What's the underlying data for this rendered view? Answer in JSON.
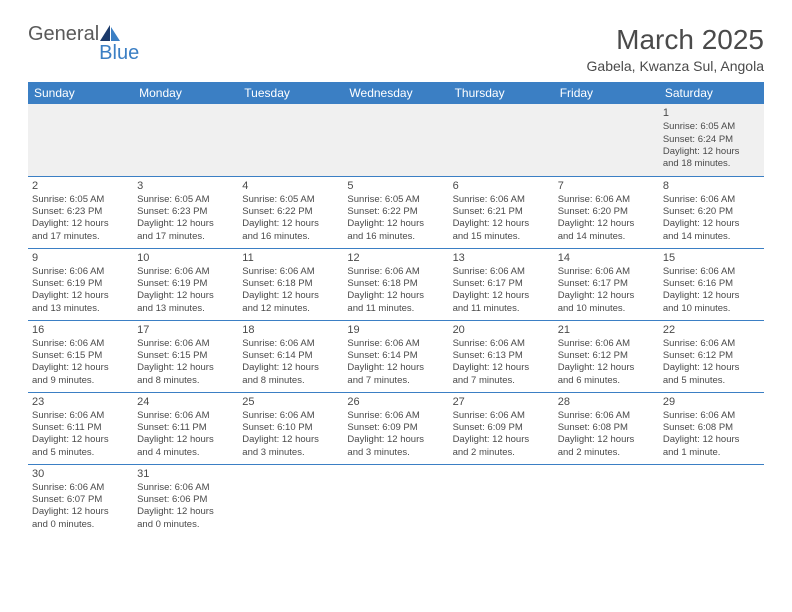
{
  "logo": {
    "general": "General",
    "blue": "Blue"
  },
  "title": "March 2025",
  "location": "Gabela, Kwanza Sul, Angola",
  "colors": {
    "header_bg": "#3b7fc4",
    "header_text": "#ffffff",
    "text": "#4a4a4a",
    "border": "#3b7fc4",
    "first_row_bg": "#f0f0f0",
    "page_bg": "#ffffff"
  },
  "dayNames": [
    "Sunday",
    "Monday",
    "Tuesday",
    "Wednesday",
    "Thursday",
    "Friday",
    "Saturday"
  ],
  "weeks": [
    [
      null,
      null,
      null,
      null,
      null,
      null,
      {
        "n": "1",
        "sr": "Sunrise: 6:05 AM",
        "ss": "Sunset: 6:24 PM",
        "dl1": "Daylight: 12 hours",
        "dl2": "and 18 minutes."
      }
    ],
    [
      {
        "n": "2",
        "sr": "Sunrise: 6:05 AM",
        "ss": "Sunset: 6:23 PM",
        "dl1": "Daylight: 12 hours",
        "dl2": "and 17 minutes."
      },
      {
        "n": "3",
        "sr": "Sunrise: 6:05 AM",
        "ss": "Sunset: 6:23 PM",
        "dl1": "Daylight: 12 hours",
        "dl2": "and 17 minutes."
      },
      {
        "n": "4",
        "sr": "Sunrise: 6:05 AM",
        "ss": "Sunset: 6:22 PM",
        "dl1": "Daylight: 12 hours",
        "dl2": "and 16 minutes."
      },
      {
        "n": "5",
        "sr": "Sunrise: 6:05 AM",
        "ss": "Sunset: 6:22 PM",
        "dl1": "Daylight: 12 hours",
        "dl2": "and 16 minutes."
      },
      {
        "n": "6",
        "sr": "Sunrise: 6:06 AM",
        "ss": "Sunset: 6:21 PM",
        "dl1": "Daylight: 12 hours",
        "dl2": "and 15 minutes."
      },
      {
        "n": "7",
        "sr": "Sunrise: 6:06 AM",
        "ss": "Sunset: 6:20 PM",
        "dl1": "Daylight: 12 hours",
        "dl2": "and 14 minutes."
      },
      {
        "n": "8",
        "sr": "Sunrise: 6:06 AM",
        "ss": "Sunset: 6:20 PM",
        "dl1": "Daylight: 12 hours",
        "dl2": "and 14 minutes."
      }
    ],
    [
      {
        "n": "9",
        "sr": "Sunrise: 6:06 AM",
        "ss": "Sunset: 6:19 PM",
        "dl1": "Daylight: 12 hours",
        "dl2": "and 13 minutes."
      },
      {
        "n": "10",
        "sr": "Sunrise: 6:06 AM",
        "ss": "Sunset: 6:19 PM",
        "dl1": "Daylight: 12 hours",
        "dl2": "and 13 minutes."
      },
      {
        "n": "11",
        "sr": "Sunrise: 6:06 AM",
        "ss": "Sunset: 6:18 PM",
        "dl1": "Daylight: 12 hours",
        "dl2": "and 12 minutes."
      },
      {
        "n": "12",
        "sr": "Sunrise: 6:06 AM",
        "ss": "Sunset: 6:18 PM",
        "dl1": "Daylight: 12 hours",
        "dl2": "and 11 minutes."
      },
      {
        "n": "13",
        "sr": "Sunrise: 6:06 AM",
        "ss": "Sunset: 6:17 PM",
        "dl1": "Daylight: 12 hours",
        "dl2": "and 11 minutes."
      },
      {
        "n": "14",
        "sr": "Sunrise: 6:06 AM",
        "ss": "Sunset: 6:17 PM",
        "dl1": "Daylight: 12 hours",
        "dl2": "and 10 minutes."
      },
      {
        "n": "15",
        "sr": "Sunrise: 6:06 AM",
        "ss": "Sunset: 6:16 PM",
        "dl1": "Daylight: 12 hours",
        "dl2": "and 10 minutes."
      }
    ],
    [
      {
        "n": "16",
        "sr": "Sunrise: 6:06 AM",
        "ss": "Sunset: 6:15 PM",
        "dl1": "Daylight: 12 hours",
        "dl2": "and 9 minutes."
      },
      {
        "n": "17",
        "sr": "Sunrise: 6:06 AM",
        "ss": "Sunset: 6:15 PM",
        "dl1": "Daylight: 12 hours",
        "dl2": "and 8 minutes."
      },
      {
        "n": "18",
        "sr": "Sunrise: 6:06 AM",
        "ss": "Sunset: 6:14 PM",
        "dl1": "Daylight: 12 hours",
        "dl2": "and 8 minutes."
      },
      {
        "n": "19",
        "sr": "Sunrise: 6:06 AM",
        "ss": "Sunset: 6:14 PM",
        "dl1": "Daylight: 12 hours",
        "dl2": "and 7 minutes."
      },
      {
        "n": "20",
        "sr": "Sunrise: 6:06 AM",
        "ss": "Sunset: 6:13 PM",
        "dl1": "Daylight: 12 hours",
        "dl2": "and 7 minutes."
      },
      {
        "n": "21",
        "sr": "Sunrise: 6:06 AM",
        "ss": "Sunset: 6:12 PM",
        "dl1": "Daylight: 12 hours",
        "dl2": "and 6 minutes."
      },
      {
        "n": "22",
        "sr": "Sunrise: 6:06 AM",
        "ss": "Sunset: 6:12 PM",
        "dl1": "Daylight: 12 hours",
        "dl2": "and 5 minutes."
      }
    ],
    [
      {
        "n": "23",
        "sr": "Sunrise: 6:06 AM",
        "ss": "Sunset: 6:11 PM",
        "dl1": "Daylight: 12 hours",
        "dl2": "and 5 minutes."
      },
      {
        "n": "24",
        "sr": "Sunrise: 6:06 AM",
        "ss": "Sunset: 6:11 PM",
        "dl1": "Daylight: 12 hours",
        "dl2": "and 4 minutes."
      },
      {
        "n": "25",
        "sr": "Sunrise: 6:06 AM",
        "ss": "Sunset: 6:10 PM",
        "dl1": "Daylight: 12 hours",
        "dl2": "and 3 minutes."
      },
      {
        "n": "26",
        "sr": "Sunrise: 6:06 AM",
        "ss": "Sunset: 6:09 PM",
        "dl1": "Daylight: 12 hours",
        "dl2": "and 3 minutes."
      },
      {
        "n": "27",
        "sr": "Sunrise: 6:06 AM",
        "ss": "Sunset: 6:09 PM",
        "dl1": "Daylight: 12 hours",
        "dl2": "and 2 minutes."
      },
      {
        "n": "28",
        "sr": "Sunrise: 6:06 AM",
        "ss": "Sunset: 6:08 PM",
        "dl1": "Daylight: 12 hours",
        "dl2": "and 2 minutes."
      },
      {
        "n": "29",
        "sr": "Sunrise: 6:06 AM",
        "ss": "Sunset: 6:08 PM",
        "dl1": "Daylight: 12 hours",
        "dl2": "and 1 minute."
      }
    ],
    [
      {
        "n": "30",
        "sr": "Sunrise: 6:06 AM",
        "ss": "Sunset: 6:07 PM",
        "dl1": "Daylight: 12 hours",
        "dl2": "and 0 minutes."
      },
      {
        "n": "31",
        "sr": "Sunrise: 6:06 AM",
        "ss": "Sunset: 6:06 PM",
        "dl1": "Daylight: 12 hours",
        "dl2": "and 0 minutes."
      },
      null,
      null,
      null,
      null,
      null
    ]
  ]
}
